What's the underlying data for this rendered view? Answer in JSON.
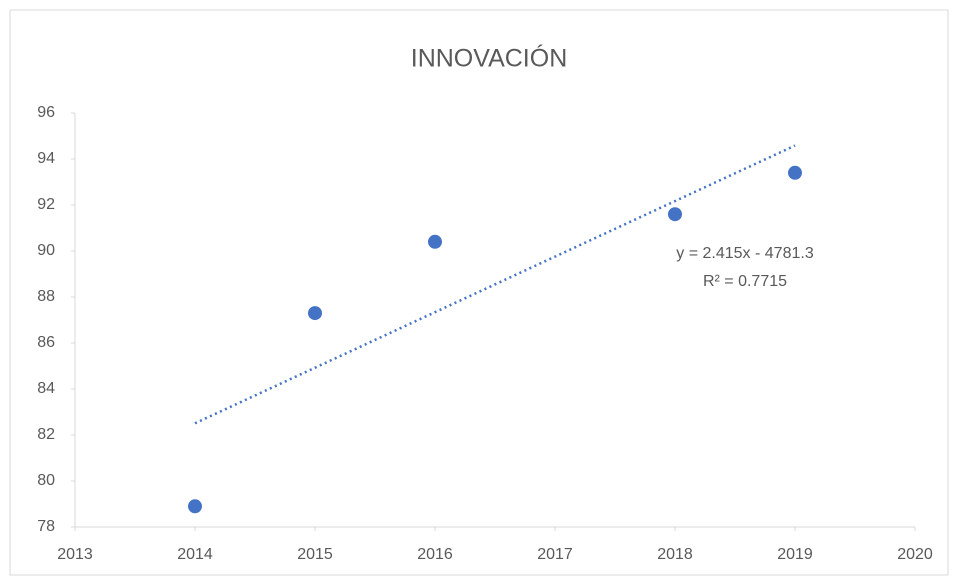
{
  "chart_data": {
    "type": "scatter",
    "title": "INNOVACIÓN",
    "x": [
      2014,
      2015,
      2016,
      2018,
      2019
    ],
    "values": [
      78.9,
      87.3,
      90.4,
      91.6,
      93.4
    ],
    "color": "#4472c4",
    "xlim": [
      2013,
      2020
    ],
    "xticks": [
      2013,
      2014,
      2015,
      2016,
      2017,
      2018,
      2019,
      2020
    ],
    "ylim": [
      78,
      96
    ],
    "yticks": [
      78,
      80,
      82,
      84,
      86,
      88,
      90,
      92,
      94,
      96
    ],
    "grid": false,
    "trendline": {
      "slope": 2.415,
      "intercept": -4781.3,
      "label": "y = 2.415x - 4781.3",
      "r2_label": "R² = 0.7715"
    }
  }
}
